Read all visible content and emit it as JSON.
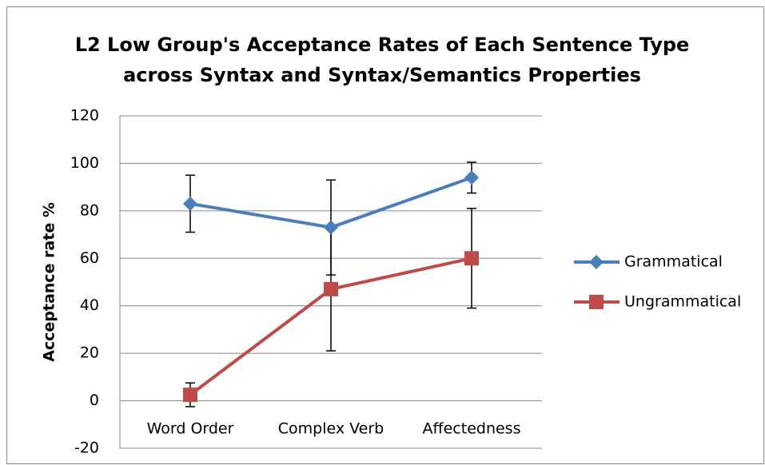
{
  "chart_data": {
    "type": "line",
    "title": [
      "L2 Low Group's Acceptance Rates of Each Sentence Type",
      "across Syntax and Syntax/Semantics Properties"
    ],
    "y_label": "Acceptance rate %",
    "categories": [
      "Word Order",
      "Complex Verb",
      "Affectedness"
    ],
    "series": [
      {
        "name": "Grammatical",
        "color": "#4a7ebb",
        "marker": "diamond",
        "values": [
          83,
          73,
          94
        ],
        "errors": [
          12,
          20,
          6.5
        ]
      },
      {
        "name": "Ungrammatical",
        "color": "#be4b48",
        "marker": "square",
        "values": [
          2.5,
          47,
          60
        ],
        "errors": [
          5,
          26,
          21
        ]
      }
    ],
    "ylim": [
      -20,
      120
    ],
    "yticks": [
      -20,
      0,
      20,
      40,
      60,
      80,
      100,
      120
    ],
    "grid": true,
    "legend": "right"
  }
}
